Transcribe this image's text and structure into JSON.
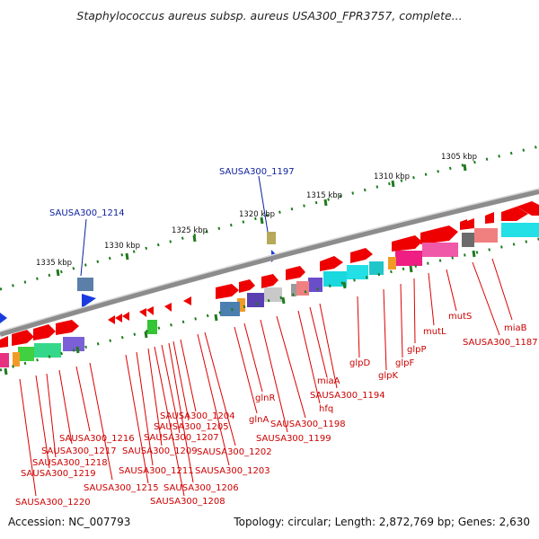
{
  "header": {
    "title": "Staphylococcus aureus subsp. aureus USA300_FPR3757, complete..."
  },
  "footer": {
    "accession": "Accession: NC_007793",
    "topology": "Topology: circular; Length: 2,872,769 bp; Genes: 2,630"
  },
  "colors": {
    "red_label": "#cc0000",
    "blue_label": "#0b1f9e",
    "backbone": "#8c8c8c",
    "tick": "#1f7a1f"
  },
  "ticks": [
    "1305 kbp",
    "1310 kbp",
    "1315 kbp",
    "1320 kbp",
    "1325 kbp",
    "1330 kbp",
    "1335 kbp"
  ],
  "top_labels": [
    "SAUSA300_1197",
    "SAUSA300_1214"
  ],
  "bottom_labels": [
    "miaB",
    "SAUSA300_1187",
    "mutS",
    "mutL",
    "glpP",
    "glpF",
    "glpK",
    "glpD",
    "miaA",
    "SAUSA300_1194",
    "hfq",
    "SAUSA300_1198",
    "SAUSA300_1199",
    "glnR",
    "glnA",
    "SAUSA300_1202",
    "SAUSA300_1203",
    "SAUSA300_1204",
    "SAUSA300_1205",
    "SAUSA300_1206",
    "SAUSA300_1207",
    "SAUSA300_1208",
    "SAUSA300_1209",
    "SAUSA300_1211",
    "SAUSA300_1215",
    "SAUSA300_1216",
    "SAUSA300_1217",
    "SAUSA300_1218",
    "SAUSA300_1219",
    "SAUSA300_1220"
  ]
}
